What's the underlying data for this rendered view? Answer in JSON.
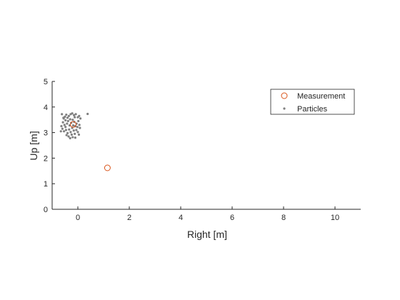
{
  "chart_data": {
    "type": "scatter",
    "xlabel": "Right [m]",
    "ylabel": "Up [m]",
    "xlim": [
      -1,
      11
    ],
    "ylim": [
      0,
      5
    ],
    "xticks": [
      0,
      2,
      4,
      6,
      8,
      10
    ],
    "yticks": [
      0,
      1,
      2,
      3,
      4,
      5
    ],
    "xtick_labels": [
      "0",
      "2",
      "4",
      "6",
      "8",
      "10"
    ],
    "ytick_labels": [
      "0",
      "1",
      "2",
      "3",
      "4",
      "5"
    ],
    "grid": false,
    "legend_position": "top-right",
    "series": [
      {
        "name": "Measurement",
        "marker": "open-circle",
        "color": "#d95319",
        "points": [
          [
            -0.18,
            3.32
          ],
          [
            1.15,
            1.62
          ]
        ]
      },
      {
        "name": "Particles",
        "marker": "dot",
        "color": "#808080",
        "points": [
          [
            -0.62,
            3.72
          ],
          [
            -0.55,
            3.55
          ],
          [
            -0.5,
            3.62
          ],
          [
            -0.45,
            3.7
          ],
          [
            -0.4,
            3.58
          ],
          [
            -0.35,
            3.65
          ],
          [
            -0.28,
            3.72
          ],
          [
            -0.22,
            3.75
          ],
          [
            -0.15,
            3.68
          ],
          [
            -0.08,
            3.72
          ],
          [
            0.0,
            3.6
          ],
          [
            0.1,
            3.55
          ],
          [
            0.38,
            3.73
          ],
          [
            -0.58,
            3.4
          ],
          [
            -0.52,
            3.3
          ],
          [
            -0.48,
            3.22
          ],
          [
            -0.42,
            3.35
          ],
          [
            -0.38,
            3.45
          ],
          [
            -0.32,
            3.28
          ],
          [
            -0.26,
            3.38
          ],
          [
            -0.2,
            3.5
          ],
          [
            -0.14,
            3.42
          ],
          [
            -0.1,
            3.25
          ],
          [
            -0.05,
            3.35
          ],
          [
            0.02,
            3.45
          ],
          [
            0.06,
            3.3
          ],
          [
            -0.6,
            3.15
          ],
          [
            -0.54,
            3.05
          ],
          [
            -0.46,
            3.1
          ],
          [
            -0.4,
            2.98
          ],
          [
            -0.34,
            3.12
          ],
          [
            -0.28,
            3.02
          ],
          [
            -0.22,
            3.18
          ],
          [
            -0.16,
            3.08
          ],
          [
            -0.12,
            2.95
          ],
          [
            -0.06,
            3.1
          ],
          [
            0.0,
            3.02
          ],
          [
            0.04,
            2.92
          ],
          [
            -0.66,
            3.05
          ],
          [
            -0.36,
            2.85
          ],
          [
            -0.3,
            2.78
          ],
          [
            -0.2,
            2.82
          ],
          [
            -0.1,
            2.8
          ],
          [
            -0.44,
            2.9
          ],
          [
            -0.24,
            2.92
          ],
          [
            -0.48,
            3.48
          ],
          [
            -0.12,
            3.6
          ],
          [
            0.08,
            3.18
          ],
          [
            -0.02,
            3.22
          ],
          [
            -0.56,
            3.58
          ],
          [
            -0.3,
            3.52
          ],
          [
            -0.18,
            3.28
          ],
          [
            -0.64,
            3.25
          ],
          [
            0.05,
            3.65
          ]
        ]
      }
    ]
  }
}
